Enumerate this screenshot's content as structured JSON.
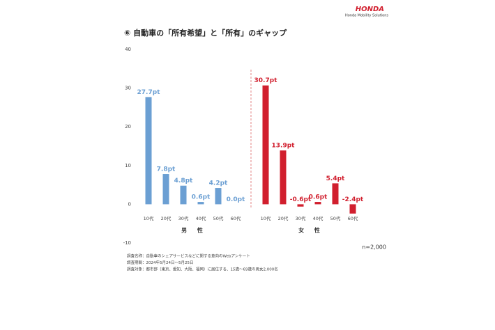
{
  "header": {
    "brand": "HONDA",
    "sub": "Honda Mobility Solutions"
  },
  "chart_data": {
    "type": "bar",
    "title": "⑥ 自動車の「所有希望」と「所有」のギャップ",
    "categories": [
      "10代",
      "20代",
      "30代",
      "40代",
      "50代",
      "60代"
    ],
    "series": [
      {
        "name": "男 性",
        "color": "#6b9fd3",
        "values": [
          27.7,
          7.8,
          4.8,
          0.6,
          4.2,
          0.0
        ],
        "value_labels": [
          "27.7pt",
          "7.8pt",
          "4.8pt",
          "0.6pt",
          "4.2pt",
          "0.0pt"
        ]
      },
      {
        "name": "女 性",
        "color": "#d11f2e",
        "values": [
          30.7,
          13.9,
          -0.6,
          0.6,
          5.4,
          -2.4
        ],
        "value_labels": [
          "30.7pt",
          "13.9pt",
          "-0.6pt",
          "0.6pt",
          "5.4pt",
          "-2.4pt"
        ]
      }
    ],
    "ylim": [
      -10,
      40
    ],
    "yticks": [
      -10,
      0,
      10,
      20,
      30,
      40
    ],
    "grid": false,
    "sample": "n=2,000",
    "notes": [
      "調査名称：自動車のシェアサービスなどに関する意向のWebアンケート",
      "調査期間：2024年5月24日～5月25日",
      "調査対象：都市部（東京、愛知、大阪、福岡）に居住する、15歳～69歳の男女2,000名"
    ]
  }
}
